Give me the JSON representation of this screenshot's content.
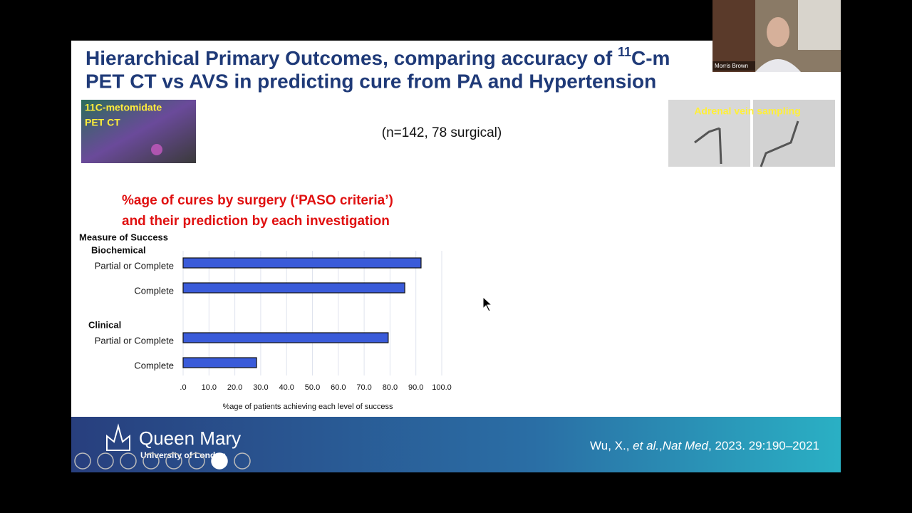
{
  "slide": {
    "title_line1": [
      "Hierarchical Primary Outcomes, comparing accuracy of ",
      "11",
      "C-m"
    ],
    "title_line2": "PET CT vs AVS in predicting cure from PA and Hypertension",
    "left_image_label": [
      "11C-metomidate",
      "PET CT"
    ],
    "sample_note": "(n=142, 78 surgical)",
    "right_image_label": "Adrenal vein sampling",
    "chart_heading": [
      "%age  of cures by surgery (‘PASO criteria’)",
      "and their prediction by each investigation"
    ],
    "logo_name": "Queen Mary",
    "logo_sub": "University of London",
    "citation": [
      "Wu, X., ",
      "et al.",
      ",",
      "Nat Med",
      ", 2023. 29:190–2021"
    ]
  },
  "video": {
    "participant": "Morris Brown"
  },
  "chart_data": {
    "type": "bar",
    "orientation": "horizontal",
    "legend_title": "Measure of Success",
    "color": "#3a5bd9",
    "groups": [
      {
        "name": "Biochemical",
        "categories": [
          "Partial or Complete",
          "Complete"
        ],
        "values": [
          92,
          85.7
        ]
      },
      {
        "name": "Clinical",
        "categories": [
          "Partial or Complete",
          "Complete"
        ],
        "values": [
          79.3,
          28.4
        ]
      }
    ],
    "xlabel": "%age of patients achieving each level of success",
    "xlim": [
      0,
      100
    ],
    "xticks": [
      {
        "value": 0,
        "label": ".0"
      },
      {
        "value": 10,
        "label": "10.0"
      },
      {
        "value": 20,
        "label": "20.0"
      },
      {
        "value": 30,
        "label": "30.0"
      },
      {
        "value": 40,
        "label": "40.0"
      },
      {
        "value": 50,
        "label": "50.0"
      },
      {
        "value": 60,
        "label": "60.0"
      },
      {
        "value": 70,
        "label": "70.0"
      },
      {
        "value": 80,
        "label": "80.0"
      },
      {
        "value": 90,
        "label": "90.0"
      },
      {
        "value": 100,
        "label": "100.0"
      }
    ],
    "grid": true
  }
}
